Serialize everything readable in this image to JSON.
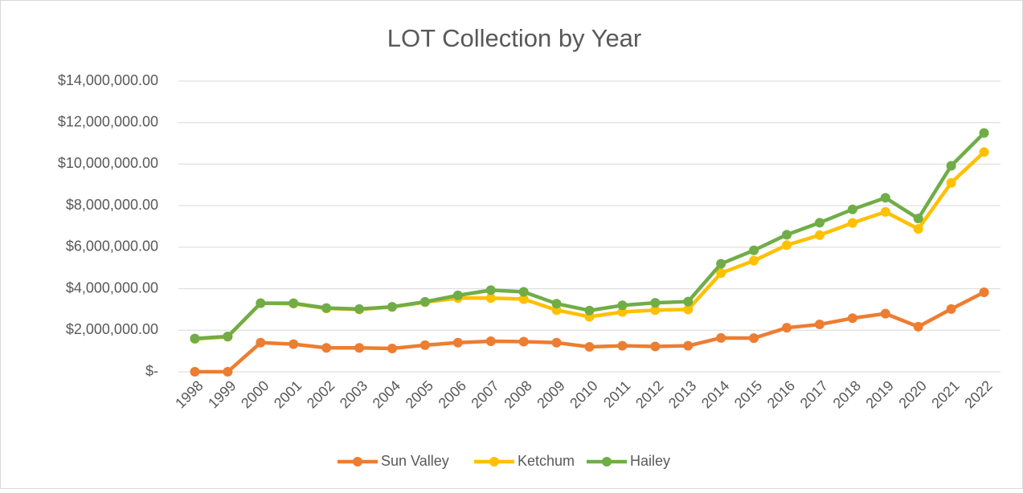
{
  "chart_data": {
    "type": "line",
    "title": "LOT Collection by Year",
    "categories": [
      "1998",
      "1999",
      "2000",
      "2001",
      "2002",
      "2003",
      "2004",
      "2005",
      "2006",
      "2007",
      "2008",
      "2009",
      "2010",
      "2011",
      "2012",
      "2013",
      "2014",
      "2015",
      "2016",
      "2017",
      "2018",
      "2019",
      "2020",
      "2021",
      "2022"
    ],
    "series": [
      {
        "name": "Sun Valley",
        "color": "#ed7d31",
        "values": [
          0,
          0,
          1400000,
          1330000,
          1150000,
          1150000,
          1120000,
          1280000,
          1400000,
          1470000,
          1450000,
          1400000,
          1200000,
          1250000,
          1220000,
          1250000,
          1630000,
          1620000,
          2120000,
          2280000,
          2580000,
          2800000,
          2170000,
          3020000,
          3830000
        ]
      },
      {
        "name": "Ketchum",
        "color": "#ffc000",
        "values": [
          1580000,
          1680000,
          3300000,
          3280000,
          3050000,
          3000000,
          3120000,
          3350000,
          3550000,
          3550000,
          3500000,
          2970000,
          2650000,
          2880000,
          2970000,
          3000000,
          4750000,
          5350000,
          6100000,
          6580000,
          7170000,
          7700000,
          6880000,
          9100000,
          10580000
        ]
      },
      {
        "name": "Hailey",
        "color": "#70ad47",
        "values": [
          1600000,
          1700000,
          3300000,
          3300000,
          3070000,
          3020000,
          3130000,
          3370000,
          3680000,
          3930000,
          3850000,
          3280000,
          2950000,
          3200000,
          3320000,
          3380000,
          5200000,
          5850000,
          6600000,
          7180000,
          7820000,
          8380000,
          7380000,
          9920000,
          11500000
        ]
      }
    ],
    "ylim": [
      0,
      14000000
    ],
    "yticks": [
      {
        "value": 0,
        "label": "$-"
      },
      {
        "value": 2000000,
        "label": "$2,000,000.00"
      },
      {
        "value": 4000000,
        "label": "$4,000,000.00"
      },
      {
        "value": 6000000,
        "label": "$6,000,000.00"
      },
      {
        "value": 8000000,
        "label": "$8,000,000.00"
      },
      {
        "value": 10000000,
        "label": "$10,000,000.00"
      },
      {
        "value": 12000000,
        "label": "$12,000,000.00"
      },
      {
        "value": 14000000,
        "label": "$14,000,000.00"
      }
    ],
    "grid": true,
    "legend": "bottom"
  }
}
